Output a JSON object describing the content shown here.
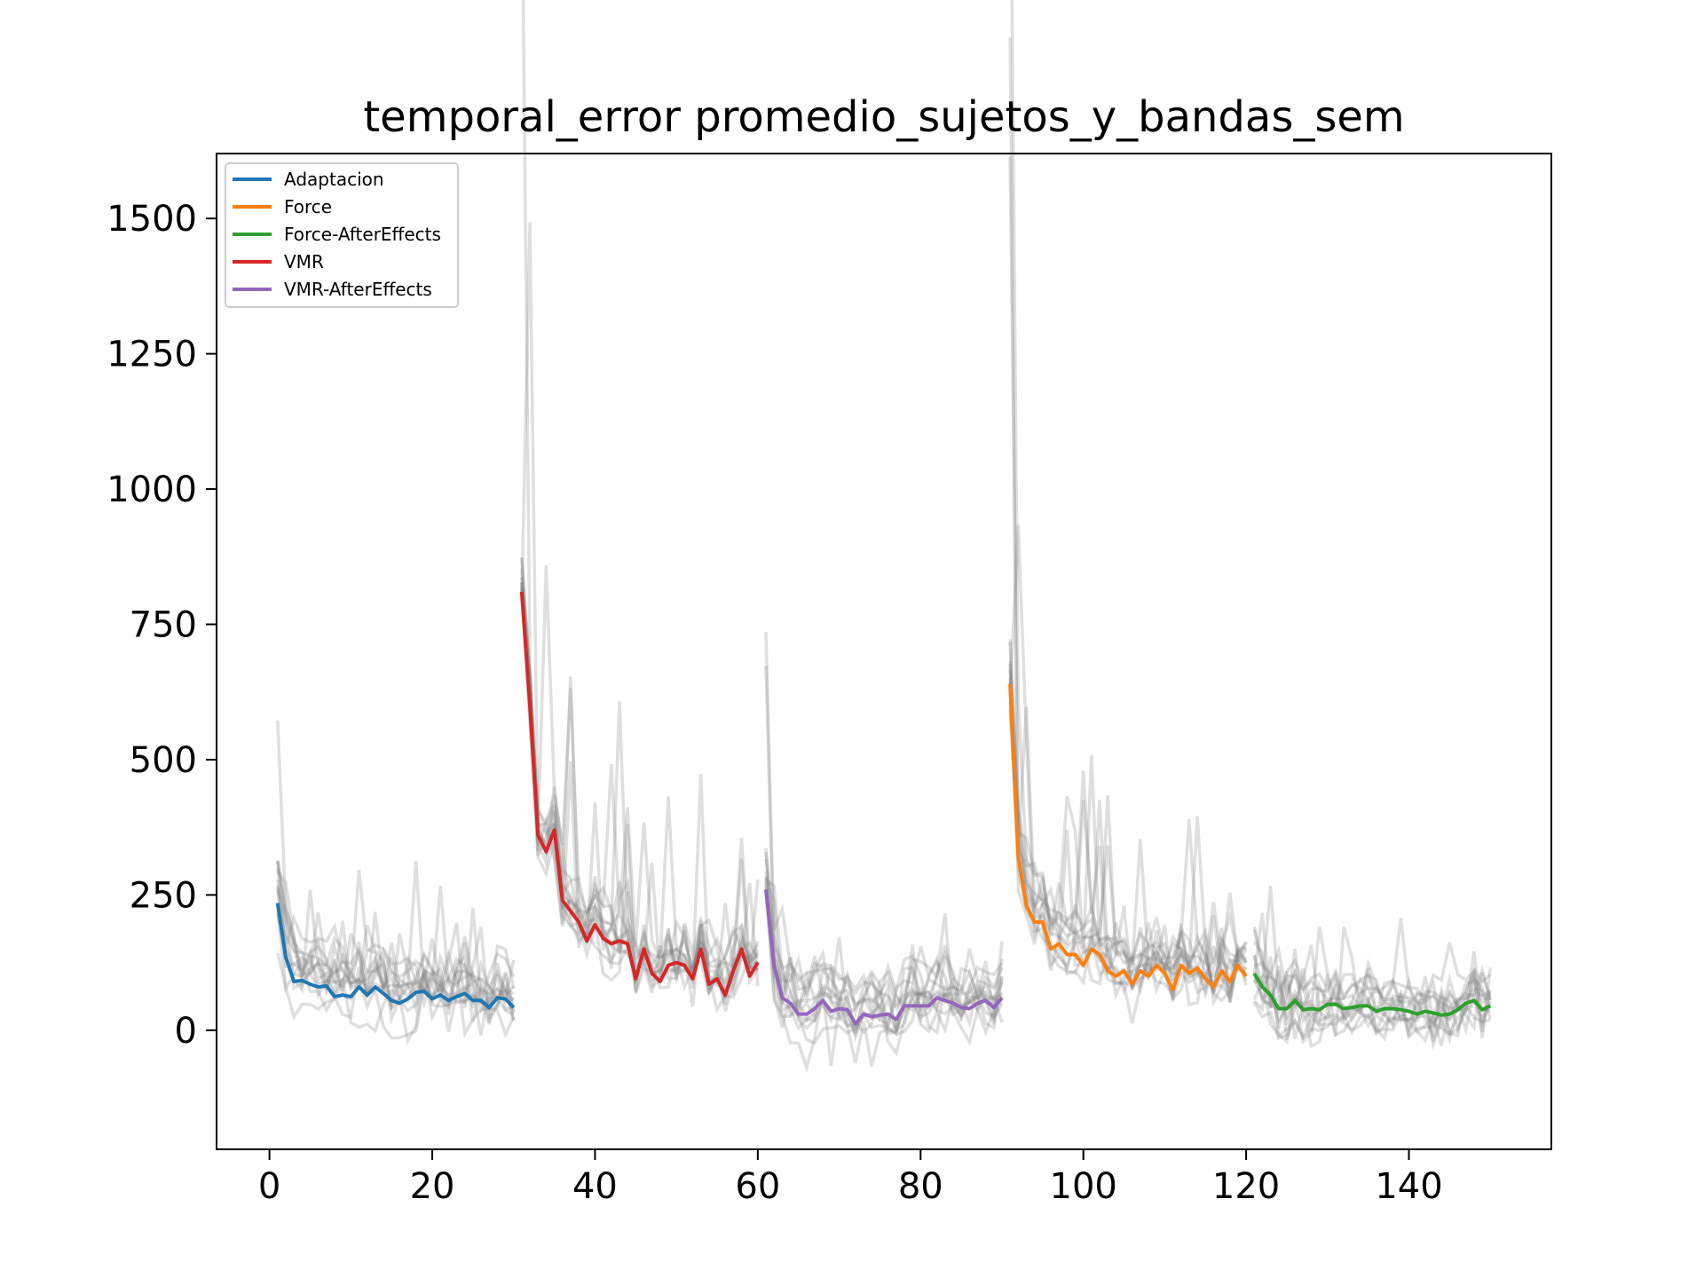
{
  "chart_data": {
    "type": "line",
    "title": "temporal_error promedio_sujetos_y_bandas_sem",
    "xlabel": "",
    "ylabel": "",
    "xlim": [
      -6.5,
      157.5
    ],
    "ylim": [
      -220,
      1620
    ],
    "xticks": [
      0,
      20,
      40,
      60,
      80,
      100,
      120,
      140
    ],
    "yticks": [
      0,
      250,
      500,
      750,
      1000,
      1250,
      1500
    ],
    "grid": false,
    "legend_position": "top-left",
    "subject_line_color": "#808080",
    "series": [
      {
        "name": "Adaptacion",
        "color": "#1f77b4",
        "x": [
          1,
          2,
          3,
          4,
          5,
          6,
          7,
          8,
          9,
          10,
          11,
          12,
          13,
          14,
          15,
          16,
          17,
          18,
          19,
          20,
          21,
          22,
          23,
          24,
          25,
          26,
          27,
          28,
          29,
          30
        ],
        "y": [
          235,
          135,
          90,
          92,
          85,
          80,
          82,
          62,
          65,
          62,
          80,
          65,
          80,
          68,
          55,
          50,
          58,
          70,
          72,
          58,
          65,
          55,
          62,
          68,
          55,
          55,
          42,
          60,
          58,
          42
        ]
      },
      {
        "name": "Force",
        "color": "#ff7f0e",
        "x": [
          91,
          92,
          93,
          94,
          95,
          96,
          97,
          98,
          99,
          100,
          101,
          102,
          103,
          104,
          105,
          106,
          107,
          108,
          109,
          110,
          111,
          112,
          113,
          114,
          115,
          116,
          117,
          118,
          119,
          120
        ],
        "y": [
          640,
          320,
          230,
          200,
          200,
          150,
          160,
          140,
          140,
          120,
          150,
          140,
          110,
          100,
          110,
          85,
          110,
          100,
          120,
          105,
          75,
          120,
          105,
          115,
          95,
          80,
          110,
          90,
          120,
          100
        ]
      },
      {
        "name": "Force-AfterEffects",
        "color": "#2ca02c",
        "x": [
          121,
          122,
          123,
          124,
          125,
          126,
          127,
          128,
          129,
          130,
          131,
          132,
          133,
          134,
          135,
          136,
          137,
          138,
          139,
          140,
          141,
          142,
          143,
          144,
          145,
          146,
          147,
          148,
          149,
          150
        ],
        "y": [
          105,
          80,
          65,
          40,
          40,
          55,
          38,
          40,
          38,
          48,
          48,
          40,
          42,
          45,
          45,
          35,
          40,
          40,
          38,
          35,
          30,
          35,
          32,
          28,
          30,
          38,
          50,
          55,
          38,
          45
        ]
      },
      {
        "name": "VMR",
        "color": "#d62728",
        "x": [
          31,
          32,
          33,
          34,
          35,
          36,
          37,
          38,
          39,
          40,
          41,
          42,
          43,
          44,
          45,
          46,
          47,
          48,
          49,
          50,
          51,
          52,
          53,
          54,
          55,
          56,
          57,
          58,
          59,
          60
        ],
        "y": [
          810,
          600,
          360,
          330,
          370,
          240,
          220,
          200,
          165,
          195,
          170,
          160,
          165,
          160,
          95,
          150,
          105,
          90,
          120,
          125,
          120,
          95,
          150,
          85,
          95,
          65,
          110,
          150,
          100,
          125
        ]
      },
      {
        "name": "VMR-AfterEffects",
        "color": "#9467bd",
        "x": [
          61,
          62,
          63,
          64,
          65,
          66,
          67,
          68,
          69,
          70,
          71,
          72,
          73,
          74,
          75,
          76,
          77,
          78,
          79,
          80,
          81,
          82,
          83,
          84,
          85,
          86,
          87,
          88,
          89,
          90
        ],
        "y": [
          260,
          120,
          60,
          50,
          30,
          30,
          40,
          55,
          35,
          40,
          38,
          12,
          30,
          25,
          28,
          30,
          20,
          45,
          45,
          45,
          45,
          60,
          55,
          50,
          42,
          40,
          50,
          55,
          42,
          60
        ]
      }
    ]
  }
}
